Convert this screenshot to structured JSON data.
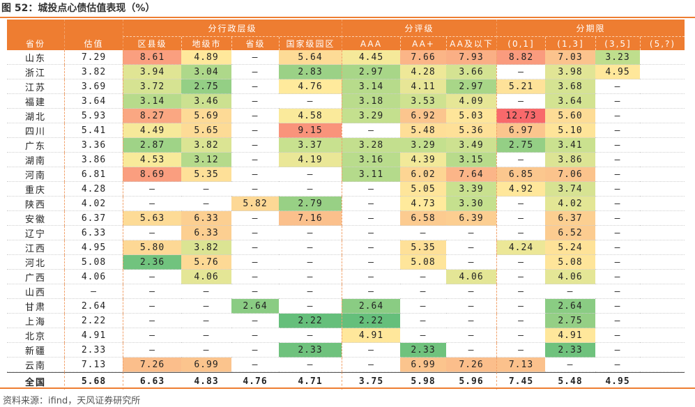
{
  "title": "图 52：城投点心债估值表现（%）",
  "source": "资料来源：ifind，天风证券研究所",
  "colors": {
    "header": "#ee7d31",
    "scale": [
      "#63be7b",
      "#c5e08e",
      "#ffeb9c",
      "#fbc48d",
      "#f8696b"
    ]
  },
  "header": {
    "groups": {
      "admin_level": "分行政层级",
      "rating": "分评级",
      "term": "分期限"
    },
    "columns": [
      "省份",
      "估值",
      "区县级",
      "地级市",
      "省级",
      "国家级园区",
      "AAA",
      "AA+",
      "AA及以下",
      "(0,1]",
      "(1,3]",
      "(3,5]",
      "(5,?)"
    ]
  },
  "rows": [
    {
      "province": "山东",
      "cells": [
        "7.29",
        "8.61",
        "4.89",
        "–",
        "5.64",
        "4.45",
        "7.66",
        "7.93",
        "8.82",
        "7.03",
        "3.23",
        ""
      ]
    },
    {
      "province": "浙江",
      "cells": [
        "3.82",
        "3.94",
        "3.04",
        "–",
        "2.83",
        "2.97",
        "4.28",
        "3.66",
        "–",
        "3.98",
        "4.95",
        ""
      ]
    },
    {
      "province": "江苏",
      "cells": [
        "3.69",
        "3.72",
        "2.75",
        "–",
        "4.76",
        "3.14",
        "4.11",
        "2.97",
        "5.21",
        "3.68",
        "–",
        ""
      ]
    },
    {
      "province": "福建",
      "cells": [
        "3.64",
        "3.14",
        "3.46",
        "–",
        "–",
        "3.18",
        "3.53",
        "4.09",
        "–",
        "3.64",
        "–",
        ""
      ]
    },
    {
      "province": "湖北",
      "cells": [
        "5.93",
        "8.27",
        "5.69",
        "–",
        "4.58",
        "3.29",
        "6.92",
        "5.03",
        "12.73",
        "5.60",
        "–",
        ""
      ]
    },
    {
      "province": "四川",
      "cells": [
        "5.41",
        "4.49",
        "5.65",
        "–",
        "9.15",
        "–",
        "5.48",
        "5.36",
        "6.97",
        "5.10",
        "–",
        ""
      ]
    },
    {
      "province": "广东",
      "cells": [
        "3.36",
        "2.87",
        "3.82",
        "–",
        "3.37",
        "3.28",
        "3.29",
        "3.49",
        "2.75",
        "3.41",
        "–",
        ""
      ]
    },
    {
      "province": "湖南",
      "cells": [
        "3.86",
        "4.53",
        "3.12",
        "–",
        "4.19",
        "3.16",
        "4.39",
        "3.15",
        "–",
        "3.86",
        "–",
        ""
      ]
    },
    {
      "province": "河南",
      "cells": [
        "6.81",
        "8.69",
        "5.35",
        "–",
        "–",
        "3.11",
        "6.02",
        "7.64",
        "6.85",
        "7.06",
        "–",
        ""
      ]
    },
    {
      "province": "重庆",
      "cells": [
        "4.28",
        "–",
        "–",
        "–",
        "–",
        "–",
        "5.05",
        "3.39",
        "4.92",
        "3.74",
        "–",
        ""
      ]
    },
    {
      "province": "陕西",
      "cells": [
        "4.02",
        "–",
        "–",
        "5.82",
        "2.79",
        "–",
        "4.73",
        "3.30",
        "–",
        "4.02",
        "–",
        ""
      ]
    },
    {
      "province": "安徽",
      "cells": [
        "6.37",
        "5.63",
        "6.33",
        "–",
        "7.16",
        "–",
        "6.58",
        "6.39",
        "–",
        "6.37",
        "–",
        ""
      ]
    },
    {
      "province": "辽宁",
      "cells": [
        "6.33",
        "–",
        "6.33",
        "–",
        "–",
        "–",
        "–",
        "–",
        "–",
        "6.52",
        "–",
        ""
      ]
    },
    {
      "province": "江西",
      "cells": [
        "4.95",
        "5.80",
        "3.82",
        "–",
        "–",
        "–",
        "5.35",
        "–",
        "4.24",
        "5.24",
        "–",
        ""
      ]
    },
    {
      "province": "河北",
      "cells": [
        "5.08",
        "2.36",
        "5.76",
        "–",
        "–",
        "–",
        "5.08",
        "–",
        "–",
        "5.08",
        "–",
        ""
      ]
    },
    {
      "province": "广西",
      "cells": [
        "4.06",
        "–",
        "4.06",
        "–",
        "–",
        "–",
        "–",
        "4.06",
        "–",
        "4.06",
        "–",
        ""
      ]
    },
    {
      "province": "山西",
      "cells": [
        "–",
        "–",
        "–",
        "–",
        "–",
        "–",
        "–",
        "–",
        "–",
        "–",
        "–",
        ""
      ]
    },
    {
      "province": "甘肃",
      "cells": [
        "2.64",
        "–",
        "–",
        "2.64",
        "–",
        "2.64",
        "–",
        "–",
        "–",
        "2.64",
        "–",
        ""
      ]
    },
    {
      "province": "上海",
      "cells": [
        "2.22",
        "–",
        "–",
        "–",
        "2.22",
        "2.22",
        "–",
        "–",
        "–",
        "2.75",
        "–",
        ""
      ]
    },
    {
      "province": "北京",
      "cells": [
        "4.91",
        "–",
        "–",
        "–",
        "–",
        "4.91",
        "–",
        "–",
        "–",
        "4.91",
        "–",
        ""
      ]
    },
    {
      "province": "新疆",
      "cells": [
        "2.33",
        "–",
        "–",
        "–",
        "2.33",
        "–",
        "2.33",
        "–",
        "–",
        "2.33",
        "–",
        ""
      ]
    },
    {
      "province": "云南",
      "cells": [
        "7.13",
        "7.26",
        "6.99",
        "–",
        "–",
        "–",
        "6.99",
        "7.26",
        "7.13",
        "–",
        "–",
        ""
      ]
    }
  ],
  "total": {
    "province": "全国",
    "cells": [
      "5.68",
      "6.63",
      "4.83",
      "4.76",
      "4.71",
      "3.75",
      "5.98",
      "5.96",
      "7.45",
      "5.48",
      "4.95",
      ""
    ]
  }
}
